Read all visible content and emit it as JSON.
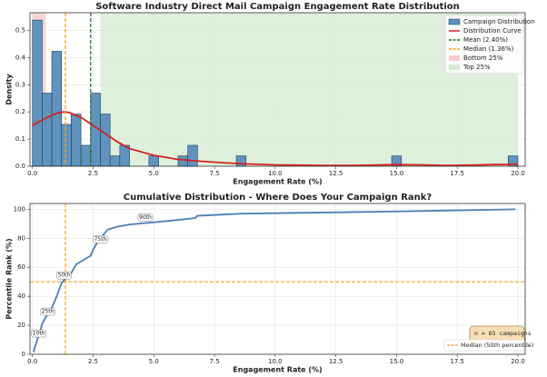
{
  "chart_data": [
    {
      "type": "histogram",
      "title": "Software Industry Direct Mail Campaign Engagement Rate Distribution",
      "xlabel": "Engagement Rate (%)",
      "ylabel": "Density",
      "name": "Campaign Distribution",
      "color": "#5f93be",
      "bins": [
        0,
        0.4,
        0.8,
        1.2,
        1.6,
        2,
        2.4,
        2.8,
        3.2,
        3.6,
        4,
        4.4,
        4.8,
        5.2,
        5.6,
        6,
        6.4,
        6.8,
        7.2,
        7.6,
        8,
        8.4,
        8.8,
        9.2,
        9.6,
        10,
        10.4,
        10.8,
        11.2,
        11.6,
        12,
        12.4,
        12.8,
        13.2,
        13.6,
        14,
        14.4,
        14.8,
        15.2,
        15.6,
        16,
        16.4,
        16.8,
        17.2,
        17.6,
        18,
        18.4,
        18.8,
        19.2,
        19.6,
        20
      ],
      "values": [
        0.538,
        0.269,
        0.423,
        0.154,
        0.192,
        0.077,
        0.269,
        0.192,
        0.038,
        0.077,
        0,
        0,
        0.038,
        0,
        0,
        0.038,
        0.077,
        0,
        0,
        0,
        0,
        0.038,
        0,
        0,
        0,
        0,
        0,
        0,
        0,
        0,
        0,
        0,
        0,
        0,
        0,
        0,
        0,
        0.038,
        0,
        0,
        0,
        0,
        0,
        0,
        0,
        0,
        0,
        0,
        0,
        0.038
      ],
      "curve": {
        "name": "Distribution Curve",
        "color": "#d62020",
        "x": [
          0,
          0.5,
          1,
          1.3,
          1.5,
          2,
          2.5,
          3,
          3.5,
          4,
          5,
          6,
          7,
          8,
          9,
          10,
          11,
          12,
          13,
          14,
          15,
          16,
          17,
          18,
          19,
          20
        ],
        "values": [
          0.15,
          0.175,
          0.195,
          0.2,
          0.198,
          0.18,
          0.15,
          0.12,
          0.09,
          0.065,
          0.04,
          0.025,
          0.018,
          0.012,
          0.008,
          0.005,
          0.004,
          0.003,
          0.003,
          0.004,
          0.006,
          0.005,
          0.003,
          0.004,
          0.006,
          0.007
        ]
      },
      "mean": {
        "name": "Mean (2.40%)",
        "value": 2.4,
        "color": "#1f7a1f"
      },
      "median": {
        "name": "Median (1.36%)",
        "value": 1.36,
        "color": "#f5a01a"
      },
      "bottom": {
        "name": "Bottom 25%",
        "range": [
          0,
          0.55
        ],
        "color": "#f7c9c9"
      },
      "top": {
        "name": "Top 25%",
        "range": [
          2.8,
          20
        ],
        "color": "#d6ecd2"
      },
      "xlim": [
        -0.1,
        20.3
      ],
      "ylim": [
        0,
        0.565
      ],
      "xticks": [
        {
          "value": 0,
          "label": "0.0"
        },
        2.5,
        {
          "value": 5,
          "label": "5.0"
        },
        7.5,
        {
          "value": 10,
          "label": "10.0"
        },
        12.5,
        {
          "value": 15,
          "label": "15.0"
        },
        17.5,
        {
          "value": 20,
          "label": "20.0"
        }
      ],
      "yticks": [
        {
          "value": 0,
          "label": "0.0"
        },
        0.1,
        0.2,
        0.3,
        0.4,
        0.5
      ],
      "grid": true,
      "legend": "upper right"
    },
    {
      "type": "line",
      "title": "Cumulative Distribution - Where Does Your Campaign Rank?",
      "xlabel": "Engagement Rate (%)",
      "ylabel": "Percentile Rank (%)",
      "color": "#4a7fb5",
      "x": [
        0.05,
        0.1,
        0.2,
        0.3,
        0.4,
        0.6,
        0.8,
        1.0,
        1.2,
        1.4,
        1.6,
        1.8,
        2.0,
        2.2,
        2.4,
        2.5,
        2.7,
        2.9,
        3.1,
        3.5,
        4.0,
        5.0,
        6.2,
        6.7,
        6.8,
        8.6,
        15,
        19.9
      ],
      "values": [
        1.5,
        5,
        10,
        15,
        21,
        27,
        32,
        40,
        49,
        53,
        56,
        62,
        64,
        66,
        68,
        72,
        78,
        82,
        86,
        88,
        89.5,
        91,
        93,
        94,
        95.5,
        97,
        98.5,
        100
      ],
      "median_line": {
        "name": "Median (50th percentile)",
        "y": 50,
        "x": 1.36,
        "color": "#f5a01a"
      },
      "annotations": [
        {
          "label": "10th",
          "x": 0.26,
          "y": 10
        },
        {
          "label": "25th",
          "x": 0.63,
          "y": 25
        },
        {
          "label": "50th",
          "x": 1.3,
          "y": 50
        },
        {
          "label": "75th",
          "x": 2.8,
          "y": 75
        },
        {
          "label": "90th",
          "x": 4.65,
          "y": 90
        }
      ],
      "stats": "n = 65 campaigns",
      "xlim": [
        -0.1,
        20.3
      ],
      "ylim": [
        0,
        104
      ],
      "xticks": [
        {
          "value": 0,
          "label": "0.0"
        },
        2.5,
        {
          "value": 5,
          "label": "5.0"
        },
        7.5,
        {
          "value": 10,
          "label": "10.0"
        },
        12.5,
        {
          "value": 15,
          "label": "15.0"
        },
        17.5,
        {
          "value": 20,
          "label": "20.0"
        }
      ],
      "yticks": [
        0,
        20,
        40,
        60,
        80,
        100
      ],
      "grid": true,
      "legend": "lower right"
    }
  ]
}
